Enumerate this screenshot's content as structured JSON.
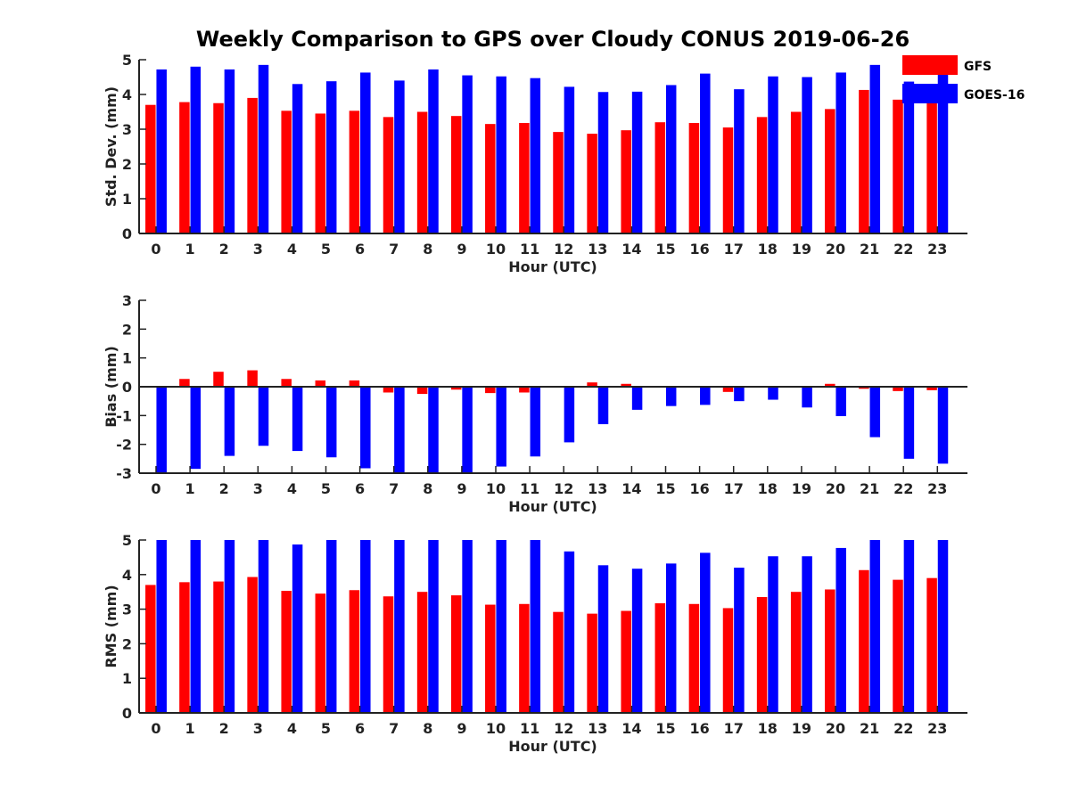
{
  "title": "Weekly Comparison to GPS over Cloudy CONUS 2019-06-26",
  "colors": {
    "GFS": "#ff0000",
    "GOES-16": "#0000ff"
  },
  "chart_data": [
    {
      "type": "bar",
      "x": [
        0,
        1,
        2,
        3,
        4,
        5,
        6,
        7,
        8,
        9,
        10,
        11,
        12,
        13,
        14,
        15,
        16,
        17,
        18,
        19,
        20,
        21,
        22,
        23
      ],
      "xlabel": "Hour (UTC)",
      "ylabel": "Std. Dev. (mm)",
      "ylim": [
        0,
        5
      ],
      "yticks": [
        0,
        1,
        2,
        3,
        4,
        5
      ],
      "legend": "top-right",
      "series": [
        {
          "name": "GFS",
          "values": [
            3.7,
            3.78,
            3.75,
            3.9,
            3.53,
            3.45,
            3.53,
            3.35,
            3.5,
            3.38,
            3.15,
            3.18,
            2.92,
            2.87,
            2.97,
            3.2,
            3.18,
            3.05,
            3.35,
            3.5,
            3.58,
            4.13,
            3.85,
            3.9
          ]
        },
        {
          "name": "GOES-16",
          "values": [
            4.72,
            4.8,
            4.72,
            4.85,
            4.3,
            4.38,
            4.63,
            4.4,
            4.72,
            4.55,
            4.52,
            4.47,
            4.22,
            4.07,
            4.08,
            4.27,
            4.6,
            4.15,
            4.52,
            4.5,
            4.63,
            4.85,
            4.37,
            4.6
          ]
        }
      ]
    },
    {
      "type": "bar",
      "x": [
        0,
        1,
        2,
        3,
        4,
        5,
        6,
        7,
        8,
        9,
        10,
        11,
        12,
        13,
        14,
        15,
        16,
        17,
        18,
        19,
        20,
        21,
        22,
        23
      ],
      "xlabel": "Hour (UTC)",
      "ylabel": "Bias (mm)",
      "ylim": [
        -3,
        3
      ],
      "yticks": [
        -3,
        -2,
        -1,
        0,
        1,
        2,
        3
      ],
      "series": [
        {
          "name": "GFS",
          "values": [
            0.02,
            0.27,
            0.52,
            0.57,
            0.27,
            0.22,
            0.22,
            -0.2,
            -0.25,
            -0.1,
            -0.22,
            -0.2,
            -0.02,
            0.15,
            0.1,
            -0.03,
            -0.02,
            -0.18,
            -0.03,
            -0.02,
            0.1,
            -0.07,
            -0.15,
            -0.12
          ]
        },
        {
          "name": "GOES-16",
          "values": [
            -3.0,
            -2.85,
            -2.4,
            -2.05,
            -2.23,
            -2.45,
            -2.83,
            -3.0,
            -3.0,
            -3.0,
            -2.77,
            -2.42,
            -1.93,
            -1.3,
            -0.8,
            -0.67,
            -0.63,
            -0.5,
            -0.45,
            -0.72,
            -1.02,
            -1.75,
            -2.5,
            -2.67
          ]
        }
      ]
    },
    {
      "type": "bar",
      "x": [
        0,
        1,
        2,
        3,
        4,
        5,
        6,
        7,
        8,
        9,
        10,
        11,
        12,
        13,
        14,
        15,
        16,
        17,
        18,
        19,
        20,
        21,
        22,
        23
      ],
      "xlabel": "Hour (UTC)",
      "ylabel": "RMS (mm)",
      "ylim": [
        0,
        5
      ],
      "yticks": [
        0,
        1,
        2,
        3,
        4,
        5
      ],
      "series": [
        {
          "name": "GFS",
          "values": [
            3.7,
            3.78,
            3.8,
            3.93,
            3.53,
            3.45,
            3.55,
            3.37,
            3.5,
            3.4,
            3.13,
            3.15,
            2.92,
            2.87,
            2.95,
            3.17,
            3.15,
            3.03,
            3.35,
            3.5,
            3.57,
            4.13,
            3.85,
            3.9
          ]
        },
        {
          "name": "GOES-16",
          "values": [
            5.0,
            5.0,
            5.0,
            5.0,
            4.87,
            5.0,
            5.0,
            5.0,
            5.0,
            5.0,
            5.0,
            5.0,
            4.67,
            4.27,
            4.17,
            4.32,
            4.63,
            4.2,
            4.53,
            4.53,
            4.77,
            5.0,
            5.0,
            5.0
          ]
        }
      ]
    }
  ]
}
